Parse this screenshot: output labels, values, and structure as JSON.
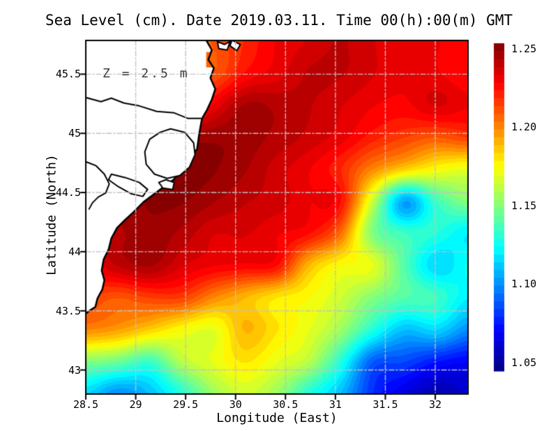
{
  "title": "Sea Level (cm). Date 2019.03.11. Time 00(h):00(m) GMT",
  "annotation": "Z = 2.5 m",
  "axes": {
    "x_label": "Longitude (East)",
    "y_label": "Latitude (North)",
    "x_tick_labels": [
      "28.5",
      "29",
      "29.5",
      "30",
      "30.5",
      "31",
      "31.5",
      "32"
    ],
    "x_tick_values": [
      28.5,
      29,
      29.5,
      30,
      30.5,
      31,
      31.5,
      32
    ],
    "y_tick_labels": [
      "45.5",
      "45",
      "44.5",
      "44",
      "43.5",
      "43"
    ],
    "y_tick_values": [
      45.5,
      45,
      44.5,
      44,
      43.5,
      43
    ]
  },
  "colorbar": {
    "tick_labels": [
      "1.25",
      "1.20",
      "1.15",
      "1.10",
      "1.05"
    ],
    "tick_values": [
      1.25,
      1.2,
      1.15,
      1.1,
      1.05
    ]
  },
  "chart_data": {
    "type": "heatmap",
    "title": "Sea Level (cm). Date 2019.03.11. Time 00(h):00(m) GMT",
    "xlabel": "Longitude (East)",
    "ylabel": "Latitude (North)",
    "xlim": [
      28.5,
      32.328
    ],
    "ylim": [
      42.797,
      45.785
    ],
    "grid_lons": [
      29,
      29.5,
      30,
      30.5,
      31,
      31.5,
      32
    ],
    "grid_lats": [
      43,
      43.5,
      44,
      44.5,
      45,
      45.5
    ],
    "colormap": "jet",
    "color_min": 1.0445,
    "color_max": 1.2535,
    "level_step": 0.005,
    "lon": [
      28.5,
      28.82,
      29.14,
      29.46,
      29.78,
      30.1,
      30.42,
      30.74,
      31.06,
      31.38,
      31.7,
      32.02,
      32.33
    ],
    "lat": [
      45.79,
      45.52,
      45.24,
      44.97,
      44.7,
      44.42,
      44.15,
      43.88,
      43.6,
      43.33,
      43.06,
      42.78
    ],
    "values": [
      [
        1.2,
        1.2,
        1.2,
        1.205,
        1.21,
        1.22,
        1.23,
        1.235,
        1.24,
        1.235,
        1.23,
        1.23,
        1.225
      ],
      [
        1.2,
        1.2,
        1.2,
        1.21,
        1.21,
        1.225,
        1.232,
        1.24,
        1.24,
        1.235,
        1.23,
        1.23,
        1.225
      ],
      [
        1.21,
        1.21,
        1.21,
        1.215,
        1.23,
        1.245,
        1.243,
        1.24,
        1.235,
        1.23,
        1.228,
        1.235,
        1.23
      ],
      [
        1.22,
        1.23,
        1.235,
        1.245,
        1.248,
        1.247,
        1.243,
        1.238,
        1.232,
        1.222,
        1.215,
        1.21,
        1.215
      ],
      [
        1.23,
        1.24,
        1.25,
        1.252,
        1.25,
        1.245,
        1.237,
        1.23,
        1.22,
        1.2,
        1.185,
        1.175,
        1.17
      ],
      [
        1.235,
        1.245,
        1.25,
        1.25,
        1.245,
        1.24,
        1.237,
        1.23,
        1.225,
        1.165,
        1.105,
        1.135,
        1.15
      ],
      [
        1.235,
        1.243,
        1.248,
        1.243,
        1.235,
        1.235,
        1.23,
        1.225,
        1.205,
        1.15,
        1.135,
        1.13,
        1.12
      ],
      [
        1.23,
        1.24,
        1.245,
        1.235,
        1.23,
        1.228,
        1.225,
        1.19,
        1.175,
        1.17,
        1.14,
        1.115,
        1.125
      ],
      [
        1.215,
        1.21,
        1.215,
        1.215,
        1.2,
        1.19,
        1.18,
        1.175,
        1.165,
        1.15,
        1.14,
        1.135,
        1.12
      ],
      [
        1.2,
        1.195,
        1.185,
        1.175,
        1.17,
        1.19,
        1.18,
        1.17,
        1.155,
        1.13,
        1.11,
        1.115,
        1.1
      ],
      [
        1.15,
        1.145,
        1.135,
        1.16,
        1.17,
        1.18,
        1.17,
        1.16,
        1.13,
        1.09,
        1.085,
        1.075,
        1.07
      ],
      [
        1.115,
        1.1,
        1.11,
        1.13,
        1.155,
        1.165,
        1.155,
        1.13,
        1.11,
        1.08,
        1.065,
        1.055,
        1.06
      ]
    ],
    "coastline": [
      [
        29.706,
        45.787
      ],
      [
        29.762,
        45.704
      ],
      [
        29.727,
        45.622
      ],
      [
        29.783,
        45.551
      ],
      [
        29.748,
        45.468
      ],
      [
        29.797,
        45.374
      ],
      [
        29.762,
        45.286
      ],
      [
        29.713,
        45.197
      ],
      [
        29.664,
        45.126
      ],
      [
        29.636,
        44.997
      ],
      [
        29.615,
        44.867
      ],
      [
        29.538,
        44.784
      ],
      [
        29.468,
        44.696
      ],
      [
        29.378,
        44.607
      ],
      [
        29.245,
        44.525
      ],
      [
        29.077,
        44.419
      ],
      [
        28.98,
        44.336
      ],
      [
        28.896,
        44.271
      ],
      [
        28.812,
        44.2
      ],
      [
        28.756,
        44.112
      ],
      [
        28.728,
        44.018
      ],
      [
        28.679,
        43.935
      ],
      [
        28.659,
        43.841
      ],
      [
        28.686,
        43.758
      ],
      [
        28.666,
        43.682
      ],
      [
        28.617,
        43.605
      ],
      [
        28.596,
        43.534
      ],
      [
        28.533,
        43.499
      ],
      [
        28.498,
        43.475
      ]
    ],
    "lakes": [
      [
        [
          29.35,
          45.038
        ],
        [
          29.49,
          45.009
        ],
        [
          29.58,
          44.92
        ],
        [
          29.594,
          44.82
        ],
        [
          29.538,
          44.714
        ],
        [
          29.441,
          44.643
        ],
        [
          29.315,
          44.62
        ],
        [
          29.189,
          44.655
        ],
        [
          29.105,
          44.738
        ],
        [
          29.091,
          44.844
        ],
        [
          29.14,
          44.95
        ],
        [
          29.245,
          45.009
        ]
      ],
      [
        [
          29.301,
          44.608
        ],
        [
          29.385,
          44.585
        ],
        [
          29.371,
          44.526
        ],
        [
          29.273,
          44.537
        ],
        [
          29.231,
          44.585
        ]
      ],
      [
        [
          28.756,
          44.655
        ],
        [
          28.896,
          44.626
        ],
        [
          29.036,
          44.585
        ],
        [
          29.119,
          44.526
        ],
        [
          29.071,
          44.467
        ],
        [
          28.952,
          44.49
        ],
        [
          28.826,
          44.549
        ],
        [
          28.728,
          44.608
        ]
      ]
    ],
    "rivers": [
      [
        [
          28.498,
          45.303
        ],
        [
          28.652,
          45.268
        ],
        [
          28.756,
          45.297
        ],
        [
          28.882,
          45.256
        ],
        [
          29.036,
          45.232
        ],
        [
          29.21,
          45.185
        ],
        [
          29.385,
          45.173
        ],
        [
          29.524,
          45.126
        ],
        [
          29.65,
          45.126
        ]
      ],
      [
        [
          28.498,
          44.761
        ],
        [
          28.603,
          44.726
        ],
        [
          28.686,
          44.655
        ],
        [
          28.735,
          44.573
        ],
        [
          28.7,
          44.496
        ],
        [
          28.624,
          44.461
        ],
        [
          28.568,
          44.414
        ],
        [
          28.533,
          44.361
        ]
      ]
    ],
    "islands": [
      [
        [
          29.818,
          45.775
        ],
        [
          29.888,
          45.751
        ],
        [
          29.944,
          45.775
        ],
        [
          29.916,
          45.704
        ],
        [
          29.832,
          45.716
        ]
      ],
      [
        [
          29.964,
          45.787
        ],
        [
          30.048,
          45.751
        ],
        [
          30.013,
          45.698
        ],
        [
          29.944,
          45.74
        ]
      ]
    ],
    "delta_water_patch": {
      "points": [
        [
          29.706,
          45.687
        ],
        [
          29.811,
          45.687
        ],
        [
          29.811,
          45.557
        ],
        [
          29.706,
          45.557
        ]
      ],
      "value": 1.205
    }
  }
}
